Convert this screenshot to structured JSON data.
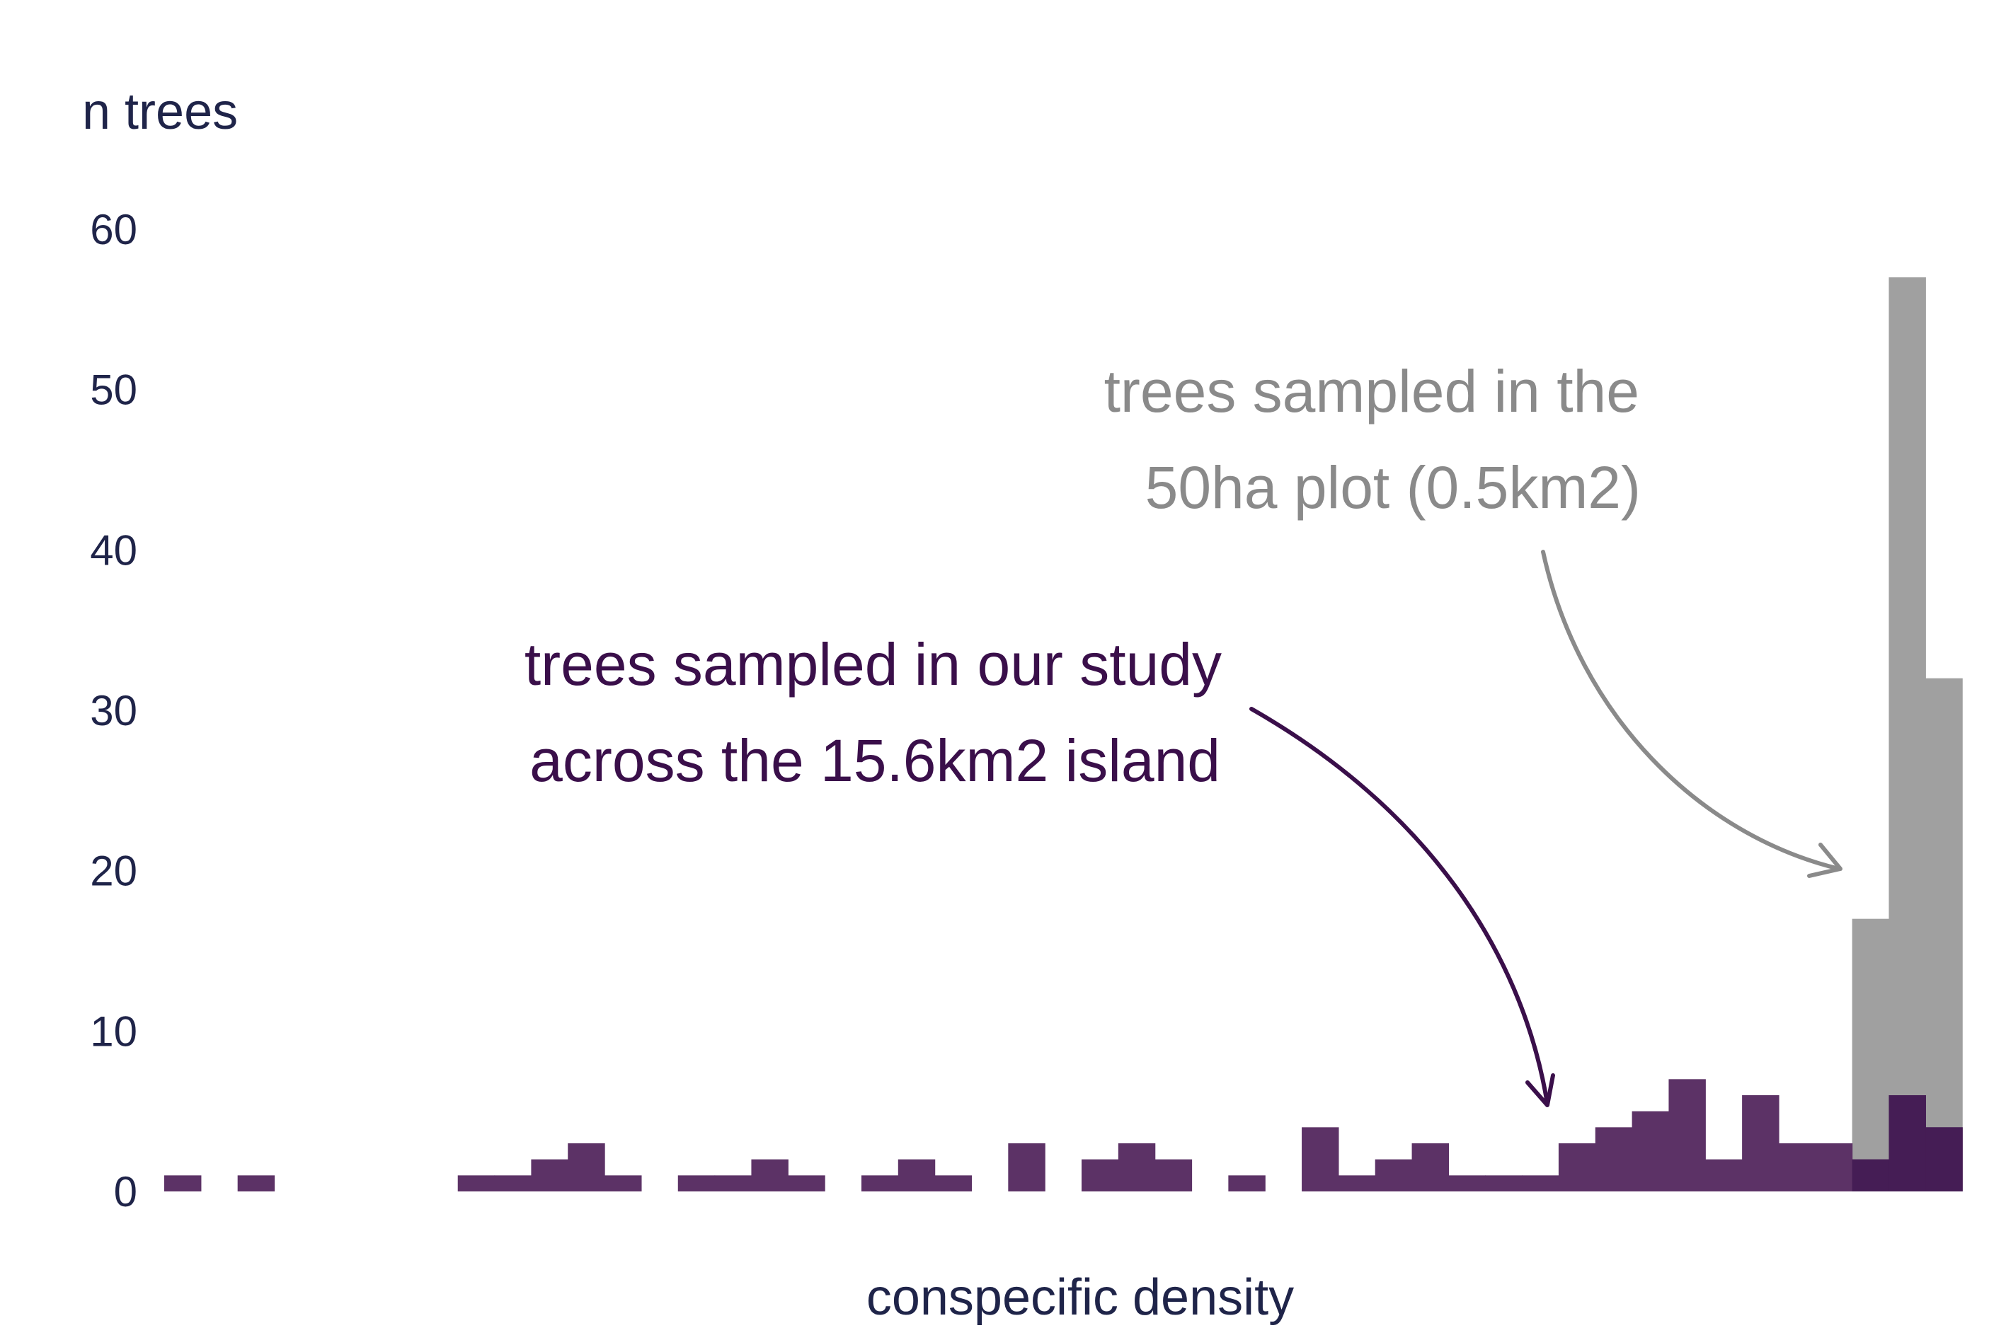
{
  "chart_data": {
    "type": "bar",
    "title": "",
    "ylabel": "n trees",
    "xlabel": "conspecific density",
    "ylim": [
      0,
      60
    ],
    "yticks": [
      "0",
      "10",
      "20",
      "30",
      "40",
      "50",
      "60"
    ],
    "grid": false,
    "legend": "none",
    "bins": 50,
    "series": [
      {
        "color": "#a0a0a0",
        "values": [
          0,
          0,
          0,
          0,
          0,
          0,
          0,
          0,
          0,
          0,
          0,
          0,
          0,
          0,
          0,
          0,
          0,
          0,
          0,
          0,
          0,
          0,
          0,
          0,
          0,
          0,
          0,
          0,
          0,
          0,
          0,
          0,
          0,
          0,
          0,
          0,
          0,
          0,
          0,
          0,
          0,
          0,
          0,
          0,
          0,
          0,
          17,
          57,
          32,
          0
        ]
      },
      {
        "color": "#5c3266",
        "values": [
          1,
          0,
          1,
          0,
          0,
          0,
          0,
          0,
          1,
          1,
          2,
          3,
          1,
          0,
          1,
          1,
          2,
          1,
          0,
          1,
          2,
          1,
          0,
          3,
          0,
          2,
          3,
          2,
          0,
          1,
          0,
          4,
          1,
          2,
          3,
          1,
          1,
          1,
          3,
          4,
          5,
          7,
          2,
          6,
          3,
          3,
          2,
          6,
          4,
          0
        ]
      }
    ],
    "overlap_color": "#451d55",
    "annotations": [
      {
        "key": "study",
        "lines": [
          "trees sampled in our study",
          "across the 15.6km2 island"
        ],
        "color": "#3a0f4a"
      },
      {
        "key": "plot",
        "lines": [
          "trees sampled in the",
          "50ha plot (0.5km2)"
        ],
        "color": "#8a8a8a"
      }
    ]
  }
}
